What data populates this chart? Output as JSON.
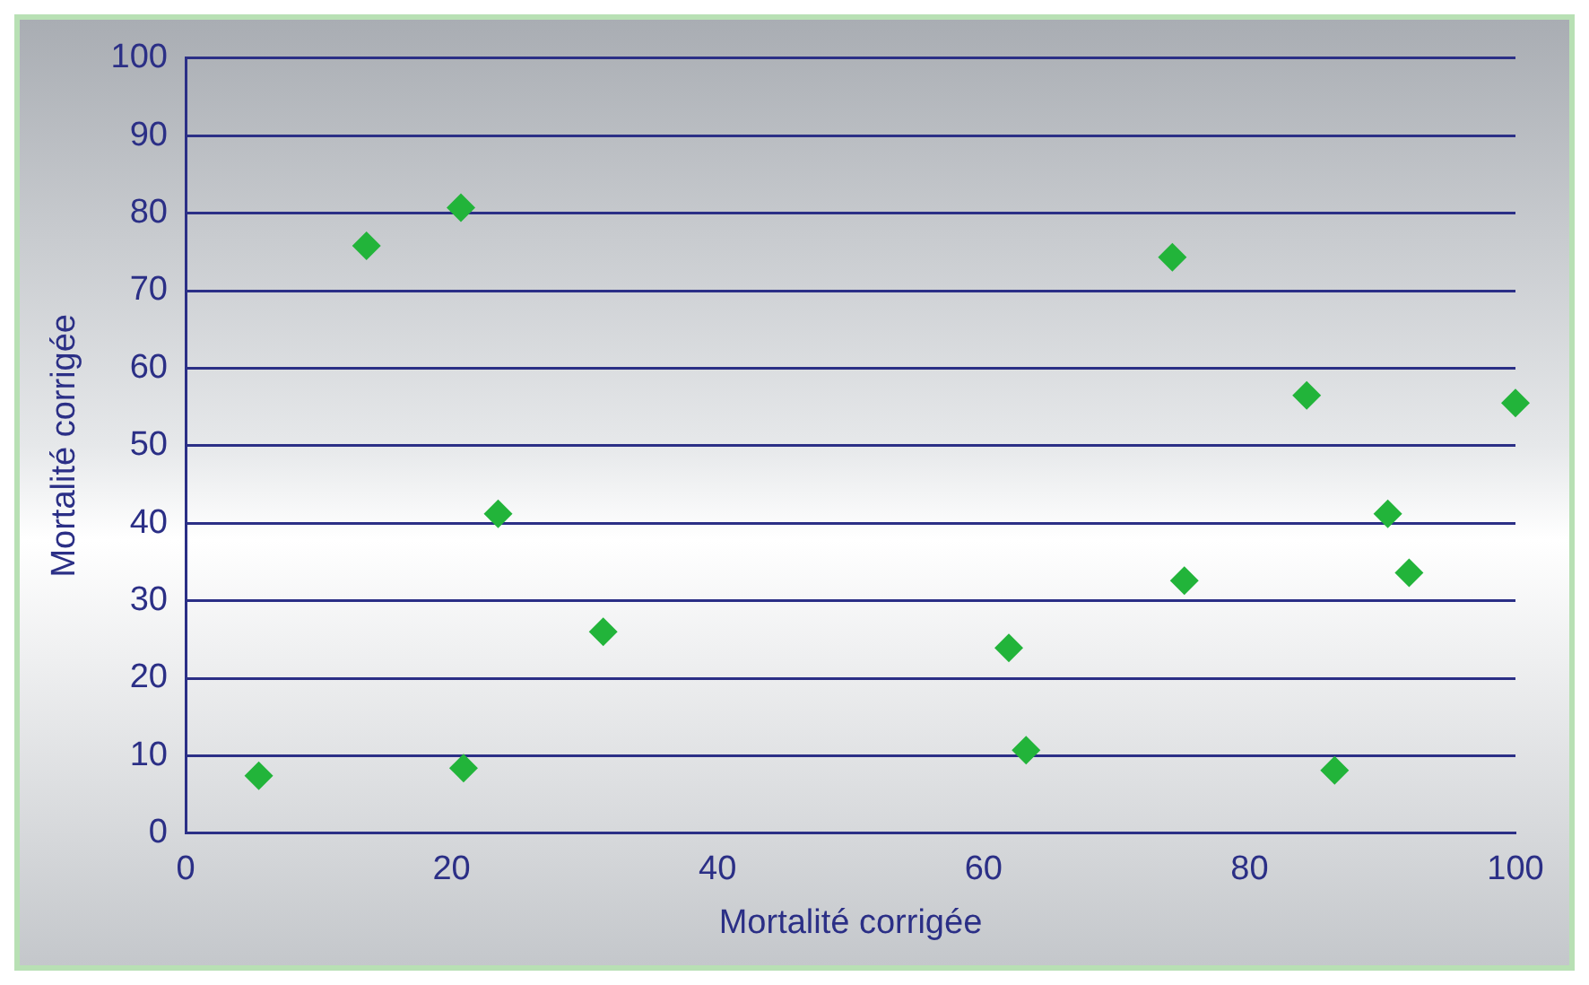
{
  "chart_data": {
    "type": "scatter",
    "xlabel": "Mortalité corrigée",
    "ylabel": "Mortalité corrigée",
    "x": [
      5.5,
      13.6,
      20.7,
      20.9,
      23.5,
      31.4,
      61.9,
      63.2,
      74.2,
      75.1,
      84.3,
      86.4,
      90.4,
      92,
      100
    ],
    "series": [
      {
        "color": "#22b43a",
        "values": [
          7.4,
          75.8,
          80.7,
          8.4,
          41.2,
          26,
          23.9,
          10.7,
          74.3,
          32.6,
          56.5,
          8.1,
          41.2,
          33.6,
          55.5
        ]
      }
    ],
    "xlim": [
      0,
      100
    ],
    "xticks": [
      0,
      20,
      40,
      60,
      80,
      100
    ],
    "ylim": [
      0,
      100
    ],
    "yticks": [
      0,
      10,
      20,
      30,
      40,
      50,
      60,
      70,
      80,
      90,
      100
    ],
    "grid": "y",
    "marker": "diamond",
    "legend": false
  }
}
